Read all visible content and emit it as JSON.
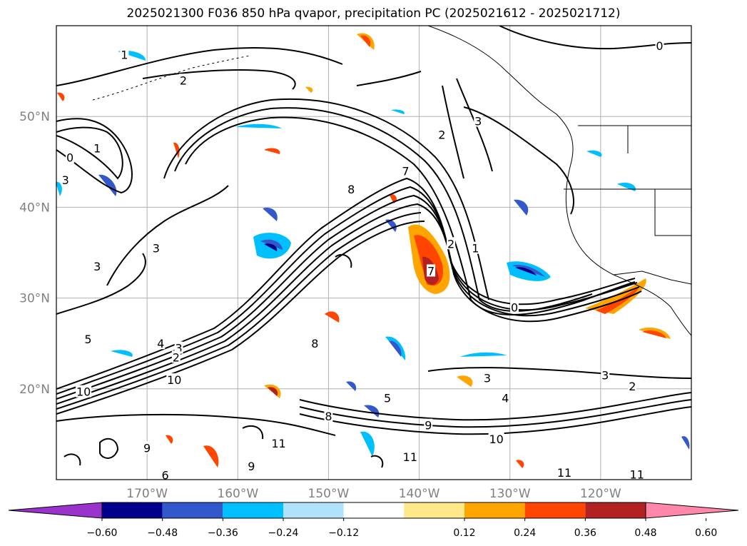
{
  "title": "2025021300 F036 850 hPa qvapor, precipitation PC (2025021612 - 2025021712)",
  "map": {
    "lon_range": [
      -180,
      -110
    ],
    "lat_range": [
      10,
      60
    ],
    "lon_ticks": [
      "170°W",
      "160°W",
      "150°W",
      "140°W",
      "130°W",
      "120°W"
    ],
    "lat_ticks": [
      "20°N",
      "30°N",
      "40°N",
      "50°N"
    ],
    "contour_field": "850 hPa qvapor",
    "shaded_field": "precipitation PC"
  },
  "colorbar": {
    "ticks": [
      "−0.60",
      "−0.48",
      "−0.36",
      "−0.24",
      "−0.12",
      "0.12",
      "0.24",
      "0.36",
      "0.48",
      "0.60"
    ],
    "colors": [
      "#9a33cc",
      "#00008b",
      "#3358cc",
      "#00bfff",
      "#b0e2fa",
      "#ffffff",
      "#ffe88a",
      "#ffa500",
      "#ff4500",
      "#b22222",
      "#ff88aa"
    ]
  },
  "contour_labels": [
    {
      "text": "0",
      "lon": -113.5,
      "lat": 57.8
    },
    {
      "text": "1",
      "lon": -172.5,
      "lat": 56.8
    },
    {
      "text": "2",
      "lon": -166.0,
      "lat": 54.0
    },
    {
      "text": "2",
      "lon": -137.5,
      "lat": 48.0
    },
    {
      "text": "3",
      "lon": -133.5,
      "lat": 49.5
    },
    {
      "text": "1",
      "lon": -175.5,
      "lat": 46.5
    },
    {
      "text": "0",
      "lon": -178.5,
      "lat": 45.5
    },
    {
      "text": "3",
      "lon": -179.0,
      "lat": 43.0
    },
    {
      "text": "7",
      "lon": -141.5,
      "lat": 44.0
    },
    {
      "text": "2",
      "lon": -136.5,
      "lat": 36.0
    },
    {
      "text": "1",
      "lon": -133.8,
      "lat": 35.5
    },
    {
      "text": "3",
      "lon": -169.0,
      "lat": 35.5
    },
    {
      "text": "3",
      "lon": -175.5,
      "lat": 33.5
    },
    {
      "text": "7",
      "lon": -138.7,
      "lat": 33.0
    },
    {
      "text": "0",
      "lon": -129.5,
      "lat": 29.0
    },
    {
      "text": "4",
      "lon": -168.5,
      "lat": 25.0
    },
    {
      "text": "3",
      "lon": -166.5,
      "lat": 24.5
    },
    {
      "text": "2",
      "lon": -166.8,
      "lat": 23.5
    },
    {
      "text": "5",
      "lon": -176.5,
      "lat": 25.5
    },
    {
      "text": "10",
      "lon": -167.0,
      "lat": 21.0
    },
    {
      "text": "10",
      "lon": -177.0,
      "lat": 19.7
    },
    {
      "text": "3",
      "lon": -132.5,
      "lat": 21.2
    },
    {
      "text": "3",
      "lon": -119.5,
      "lat": 21.5
    },
    {
      "text": "2",
      "lon": -116.5,
      "lat": 20.3
    },
    {
      "text": "4",
      "lon": -130.5,
      "lat": 19.0
    },
    {
      "text": "5",
      "lon": -143.5,
      "lat": 19.0
    },
    {
      "text": "8",
      "lon": -150.0,
      "lat": 17.0
    },
    {
      "text": "9",
      "lon": -139.0,
      "lat": 16.0
    },
    {
      "text": "10",
      "lon": -131.5,
      "lat": 14.5
    },
    {
      "text": "11",
      "lon": -155.5,
      "lat": 14.0
    },
    {
      "text": "11",
      "lon": -141.0,
      "lat": 12.5
    },
    {
      "text": "11",
      "lon": -124.0,
      "lat": 10.8
    },
    {
      "text": "11",
      "lon": -116.0,
      "lat": 10.6
    },
    {
      "text": "9",
      "lon": -158.5,
      "lat": 11.5
    },
    {
      "text": "9",
      "lon": -170.0,
      "lat": 13.5
    },
    {
      "text": "6",
      "lon": -168.0,
      "lat": 10.5
    },
    {
      "text": "8",
      "lon": -147.5,
      "lat": 42.0
    },
    {
      "text": "8",
      "lon": -151.5,
      "lat": 25.0
    }
  ]
}
